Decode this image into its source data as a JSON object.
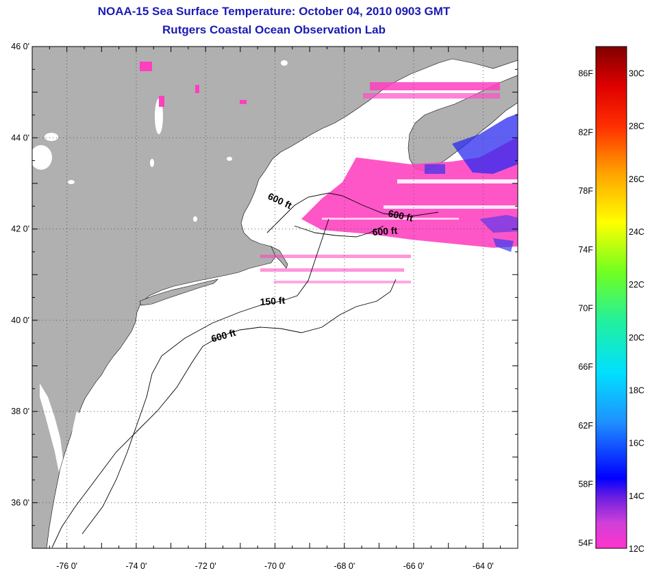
{
  "title": "NOAA-15 Sea Surface Temperature:  October 04, 2010 0903 GMT",
  "subtitle": "Rutgers Coastal Ocean Observation Lab",
  "map": {
    "lon_range": [
      -77,
      -63
    ],
    "lat_range": [
      35,
      46
    ],
    "lat_ticks": [
      {
        "value": 46,
        "label": "46 0'"
      },
      {
        "value": 44,
        "label": "44 0'"
      },
      {
        "value": 42,
        "label": "42 0'"
      },
      {
        "value": 40,
        "label": "40 0'"
      },
      {
        "value": 38,
        "label": "38 0'"
      },
      {
        "value": 36,
        "label": "36 0'"
      }
    ],
    "lon_ticks": [
      {
        "value": -76,
        "label": "-76 0'"
      },
      {
        "value": -74,
        "label": "-74 0'"
      },
      {
        "value": -72,
        "label": "-72 0'"
      },
      {
        "value": -70,
        "label": "-70 0'"
      },
      {
        "value": -68,
        "label": "-68 0'"
      },
      {
        "value": -66,
        "label": "-66 0'"
      },
      {
        "value": -64,
        "label": "-64 0'"
      }
    ],
    "grid": true,
    "land_color": "#b0b0b0",
    "contour_labels": [
      "600 ft",
      "600 ft",
      "600 ft",
      "150 ft",
      "600 ft"
    ]
  },
  "colorbar": {
    "range_c": [
      12,
      31
    ],
    "celsius_labels": [
      "30C",
      "28C",
      "26C",
      "24C",
      "22C",
      "20C",
      "18C",
      "16C",
      "14C",
      "12C"
    ],
    "fahrenheit_labels": [
      "86F",
      "82F",
      "78F",
      "74F",
      "70F",
      "66F",
      "62F",
      "58F",
      "54F"
    ]
  }
}
